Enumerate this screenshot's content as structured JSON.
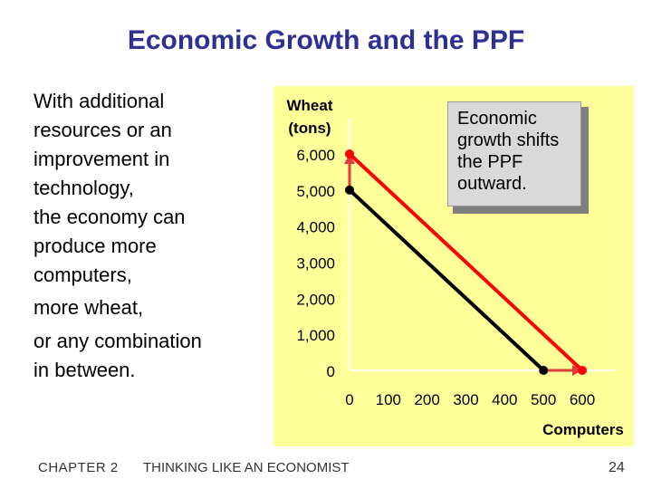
{
  "slide": {
    "title": "Economic Growth and the PPF",
    "bullets": [
      "With additional",
      "resources or an",
      "improvement in",
      "technology,",
      "the economy can",
      "produce more",
      "computers,"
    ],
    "bullet_more_wheat": "more wheat,",
    "bullet_combination": [
      "or any combination",
      "in between."
    ],
    "callout": [
      "Economic",
      "growth shifts",
      "the PPF",
      "outward."
    ],
    "footer": {
      "chapter": "CHAPTER 2",
      "book": "THINKING LIKE AN ECONOMIST",
      "page": "24"
    }
  },
  "colors": {
    "title": "#2e3192",
    "panel": "#ffff99",
    "old_ppf": "#000000",
    "new_ppf": "#ff0000",
    "arrow": "#e23b3b"
  },
  "chart_data": {
    "type": "line",
    "ylabel": [
      "Wheat",
      "(tons)"
    ],
    "xlabel": "Computers",
    "y_ticks": [
      "6,000",
      "5,000",
      "4,000",
      "3,000",
      "2,000",
      "1,000",
      "0"
    ],
    "y_tick_values": [
      6000,
      5000,
      4000,
      3000,
      2000,
      1000,
      0
    ],
    "x_ticks": [
      "0",
      "100",
      "200",
      "300",
      "400",
      "500",
      "600"
    ],
    "x_tick_values": [
      0,
      100,
      200,
      300,
      400,
      500,
      600
    ],
    "xlim": [
      0,
      600
    ],
    "ylim": [
      0,
      6000
    ],
    "series": [
      {
        "color": "#000000",
        "x": [
          0,
          500
        ],
        "y": [
          5000,
          0
        ]
      },
      {
        "color": "#ff0000",
        "x": [
          0,
          600
        ],
        "y": [
          6000,
          0
        ]
      }
    ],
    "arrows": [
      {
        "from": [
          0,
          5000
        ],
        "to": [
          0,
          6000
        ]
      },
      {
        "from": [
          500,
          0
        ],
        "to": [
          600,
          0
        ]
      }
    ]
  }
}
